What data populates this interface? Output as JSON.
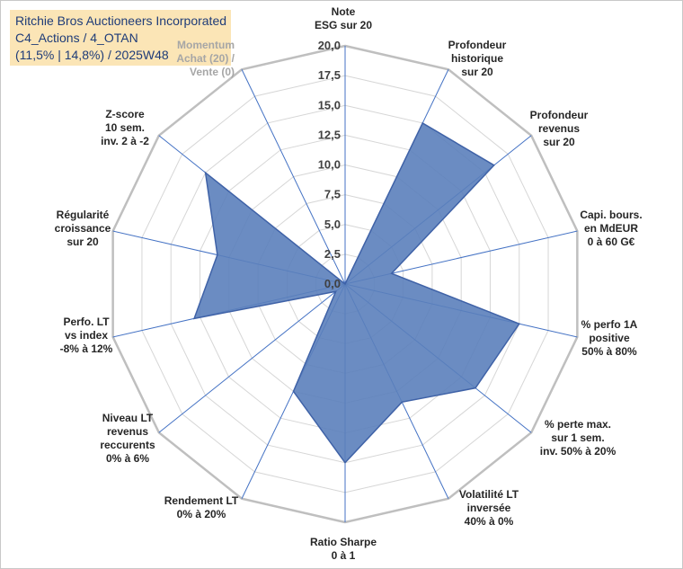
{
  "title": {
    "line1": "Ritchie Bros Auctioneers Incorporated",
    "line2": "C4_Actions / 4_OTAN",
    "line3": "(11,5% | 14,8%) / 2025W48"
  },
  "colors": {
    "fill": "#5b7fbb",
    "stroke": "#3f62a7",
    "grid": "#d6d6d6",
    "outer": "#bfbfbf",
    "spoke": "#4472c4",
    "title_bg": "#fbe5b6",
    "title_text": "#1f3c78"
  },
  "chart_data": {
    "type": "radar",
    "rlim": [
      0,
      20
    ],
    "rticks": [
      "0,0",
      "2,5",
      "5,0",
      "7,5",
      "10,0",
      "12,5",
      "15,0",
      "17,5",
      "20,0"
    ],
    "grid": true,
    "legend": "none",
    "categories": [
      "Note\nESG sur 20",
      "Profondeur\nhistorique\nsur 20",
      "Profondeur\nrevenus\nsur 20",
      "Capi. bours.\nen MdEUR\n0 à 60 G€",
      "% perfo 1A\npositive\n50% à 80%",
      "% perte max.\nsur 1 sem.\ninv. 50% à 20%",
      "Volatilité LT\ninversée\n40% à 0%",
      "Ratio Sharpe\n0 à 1",
      "Rendement LT\n0% à 20%",
      "Niveau LT\nrevenus\nreccurents\n0% à 6%",
      "Perfo. LT\nvs index\n-8% à 12%",
      "Régularité\ncroissance\nsur 20",
      "Z-score\n10 sem.\ninv. 2 à -2",
      "Momentum\nAchat (20) /\nVente (0)"
    ],
    "values": [
      0,
      15,
      16,
      4,
      15,
      14,
      11,
      15,
      10,
      1,
      13,
      11,
      15,
      0
    ]
  }
}
